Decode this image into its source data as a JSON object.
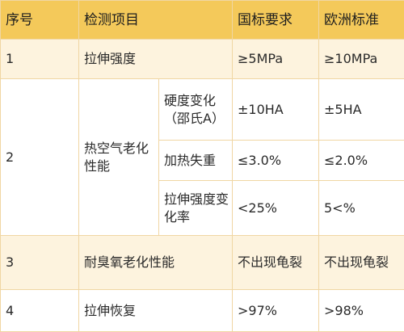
{
  "table": {
    "headers": {
      "index": "序号",
      "item": "检测项目",
      "national": "国标要求",
      "european": "欧洲标准"
    },
    "rows": {
      "r1": {
        "index": "1",
        "item": "拉伸强度",
        "national": "≥5MPa",
        "european": "≥10MPa"
      },
      "r2": {
        "index": "2",
        "item": "热空气老化性能",
        "subrows": [
          {
            "item": "硬度变化（邵氏A）",
            "national": "±10HA",
            "european": "±5HA"
          },
          {
            "item": "加热失重",
            "national": "≤3.0%",
            "european": "≤2.0%"
          },
          {
            "item": "拉伸强度变化率",
            "national": "<25%",
            "european": "5<%"
          }
        ]
      },
      "r3": {
        "index": "3",
        "item": "耐臭氧老化性能",
        "national": "不出现龟裂",
        "european": "不出现龟裂"
      },
      "r4": {
        "index": "4",
        "item": "拉伸恢复",
        "national": ">97%",
        "european": ">98%"
      }
    }
  }
}
